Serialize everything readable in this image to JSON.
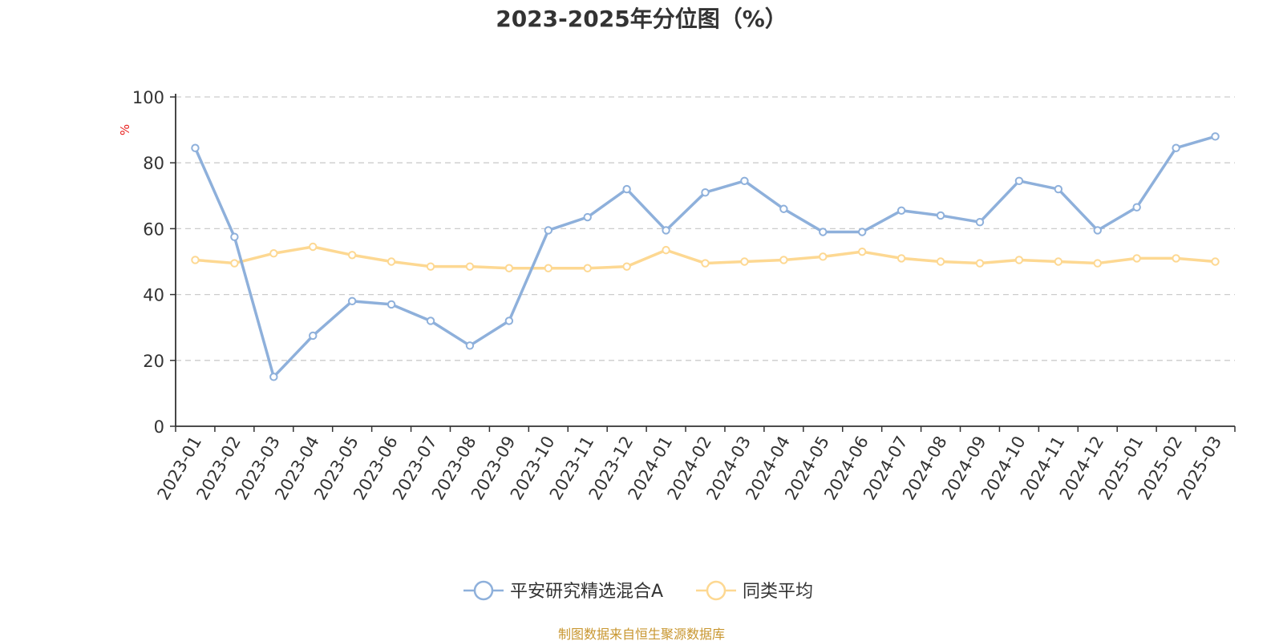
{
  "chart_data": {
    "type": "line",
    "title": "2023-2025年分位图（%）",
    "ylabel": "%",
    "ylim": [
      0,
      100
    ],
    "yticks": [
      0,
      20,
      40,
      60,
      80,
      100
    ],
    "grid": true,
    "legend_position": "bottom-center",
    "categories": [
      "2023-01",
      "2023-02",
      "2023-03",
      "2023-04",
      "2023-05",
      "2023-06",
      "2023-07",
      "2023-08",
      "2023-09",
      "2023-10",
      "2023-11",
      "2023-12",
      "2024-01",
      "2024-02",
      "2024-03",
      "2024-04",
      "2024-05",
      "2024-06",
      "2024-07",
      "2024-08",
      "2024-09",
      "2024-10",
      "2024-11",
      "2024-12",
      "2025-01",
      "2025-02",
      "2025-03"
    ],
    "series": [
      {
        "name": "平安研究精选混合A",
        "color": "#8eb0db",
        "values": [
          84.5,
          57.5,
          15.0,
          27.5,
          38.0,
          37.0,
          32.0,
          24.5,
          32.0,
          59.5,
          63.5,
          72.0,
          59.5,
          71.0,
          74.5,
          66.0,
          59.0,
          59.0,
          65.5,
          64.0,
          62.0,
          74.5,
          72.0,
          59.5,
          66.5,
          84.5,
          88.0
        ]
      },
      {
        "name": "同类平均",
        "color": "#fdd892",
        "values": [
          50.5,
          49.5,
          52.5,
          54.5,
          52.0,
          50.0,
          48.5,
          48.5,
          48.0,
          48.0,
          48.0,
          48.5,
          53.5,
          49.5,
          50.0,
          50.5,
          51.5,
          53.0,
          51.0,
          50.0,
          49.5,
          50.5,
          50.0,
          49.5,
          51.0,
          51.0,
          50.0
        ]
      }
    ],
    "axis_color": "#333333",
    "grid_color": "#cccccc",
    "unit_color": "#e8201e"
  },
  "source": {
    "text": "制图数据来自恒生聚源数据库",
    "color": "#c8962f"
  }
}
